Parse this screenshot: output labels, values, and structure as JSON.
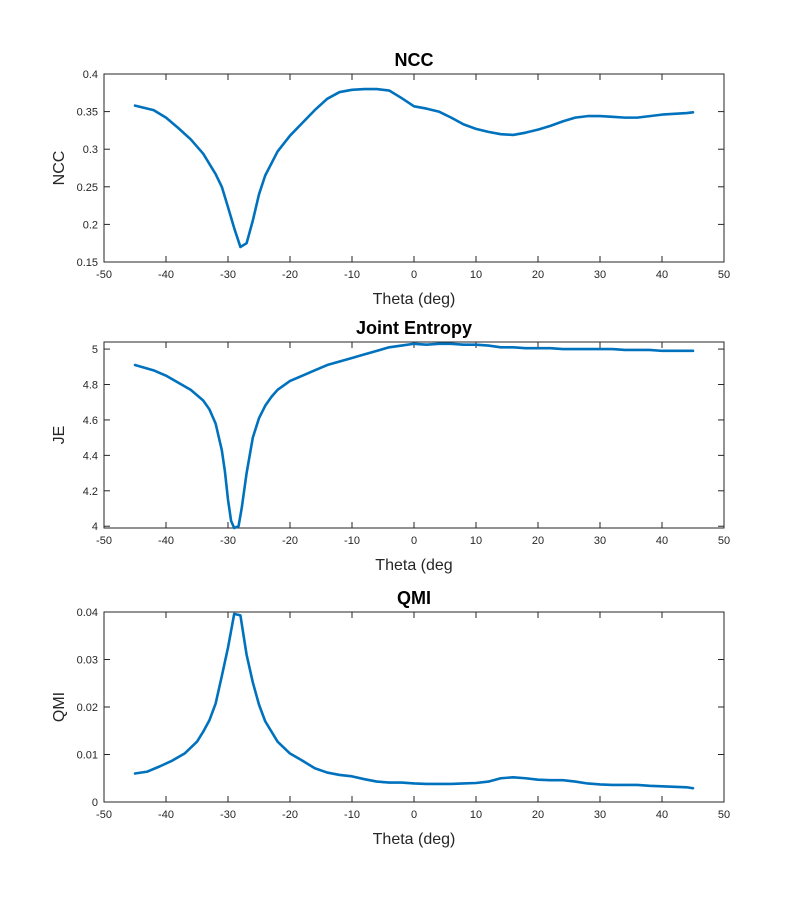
{
  "chart_data": [
    {
      "type": "line",
      "title": "NCC",
      "xlabel": "Theta (deg)",
      "ylabel": "NCC",
      "xlim": [
        -50,
        50
      ],
      "ylim": [
        0.15,
        0.4
      ],
      "xticks": [
        -50,
        -40,
        -30,
        -20,
        -10,
        0,
        10,
        20,
        30,
        40,
        50
      ],
      "yticks": [
        0.15,
        0.2,
        0.25,
        0.3,
        0.35,
        0.4
      ],
      "ytick_labels": [
        "0.15",
        "0.2",
        "0.25",
        "0.3",
        "0.35",
        "0.4"
      ],
      "grid": false,
      "color": "#0072BD",
      "series": [
        {
          "x": [
            -45,
            -42,
            -40,
            -38,
            -36,
            -34,
            -32,
            -31,
            -30,
            -29,
            -28,
            -27,
            -26,
            -25,
            -24,
            -22,
            -20,
            -18,
            -16,
            -14,
            -12,
            -10,
            -8,
            -6,
            -4,
            -2,
            0,
            2,
            4,
            6,
            8,
            10,
            12,
            14,
            16,
            18,
            20,
            22,
            24,
            26,
            28,
            30,
            32,
            34,
            36,
            38,
            40,
            42,
            44,
            45
          ],
          "y": [
            0.358,
            0.352,
            0.342,
            0.328,
            0.313,
            0.294,
            0.267,
            0.25,
            0.223,
            0.195,
            0.17,
            0.175,
            0.205,
            0.24,
            0.265,
            0.297,
            0.318,
            0.335,
            0.352,
            0.367,
            0.376,
            0.379,
            0.38,
            0.38,
            0.378,
            0.368,
            0.357,
            0.354,
            0.35,
            0.342,
            0.333,
            0.327,
            0.323,
            0.32,
            0.319,
            0.322,
            0.326,
            0.331,
            0.337,
            0.342,
            0.344,
            0.344,
            0.343,
            0.342,
            0.342,
            0.344,
            0.346,
            0.347,
            0.348,
            0.349
          ]
        }
      ]
    },
    {
      "type": "line",
      "title": "Joint Entropy",
      "xlabel": "Theta (deg",
      "ylabel": "JE",
      "xlim": [
        -50,
        50
      ],
      "ylim": [
        3.99,
        5.04
      ],
      "xticks": [
        -50,
        -40,
        -30,
        -20,
        -10,
        0,
        10,
        20,
        30,
        40,
        50
      ],
      "yticks": [
        4.0,
        4.2,
        4.4,
        4.6,
        4.8,
        5.0
      ],
      "ytick_labels": [
        "4",
        "4.2",
        "4.4",
        "4.6",
        "4.8",
        "5"
      ],
      "grid": false,
      "color": "#0072BD",
      "series": [
        {
          "x": [
            -45,
            -42,
            -40,
            -38,
            -36,
            -34,
            -33,
            -32,
            -31,
            -30.5,
            -30,
            -29.5,
            -29,
            -28.3,
            -27.8,
            -27,
            -26,
            -25,
            -24,
            -23,
            -22,
            -20,
            -18,
            -16,
            -14,
            -12,
            -10,
            -8,
            -6,
            -4,
            -2,
            0,
            2,
            4,
            6,
            8,
            10,
            12,
            14,
            16,
            18,
            20,
            22,
            24,
            26,
            28,
            30,
            32,
            34,
            36,
            38,
            40,
            42,
            44,
            45
          ],
          "y": [
            4.91,
            4.88,
            4.85,
            4.81,
            4.77,
            4.71,
            4.66,
            4.58,
            4.43,
            4.31,
            4.15,
            4.03,
            3.99,
            4.0,
            4.1,
            4.3,
            4.5,
            4.61,
            4.68,
            4.73,
            4.77,
            4.82,
            4.85,
            4.88,
            4.91,
            4.93,
            4.95,
            4.97,
            4.99,
            5.01,
            5.02,
            5.03,
            5.025,
            5.03,
            5.03,
            5.025,
            5.025,
            5.02,
            5.01,
            5.01,
            5.005,
            5.005,
            5.005,
            5.0,
            5.0,
            5.0,
            5.0,
            5.0,
            4.995,
            4.995,
            4.995,
            4.99,
            4.99,
            4.99,
            4.99
          ]
        }
      ]
    },
    {
      "type": "line",
      "title": "QMI",
      "xlabel": "Theta (deg)",
      "ylabel": "QMI",
      "xlim": [
        -50,
        50
      ],
      "ylim": [
        0,
        0.04
      ],
      "xticks": [
        -50,
        -40,
        -30,
        -20,
        -10,
        0,
        10,
        20,
        30,
        40,
        50
      ],
      "yticks": [
        0,
        0.01,
        0.02,
        0.03,
        0.04
      ],
      "ytick_labels": [
        "0",
        "0.01",
        "0.02",
        "0.03",
        "0.04"
      ],
      "grid": false,
      "color": "#0072BD",
      "series": [
        {
          "x": [
            -45,
            -43,
            -41,
            -39,
            -37,
            -35,
            -34,
            -33,
            -32,
            -31,
            -30,
            -29,
            -28,
            -27,
            -26,
            -25,
            -24,
            -22,
            -20,
            -18,
            -16,
            -14,
            -12,
            -10,
            -8,
            -6,
            -4,
            -2,
            0,
            2,
            4,
            6,
            8,
            10,
            12,
            14,
            16,
            18,
            20,
            22,
            24,
            26,
            28,
            30,
            32,
            34,
            36,
            38,
            40,
            42,
            44,
            45
          ],
          "y": [
            0.006,
            0.0064,
            0.0075,
            0.0087,
            0.0102,
            0.0127,
            0.0148,
            0.0172,
            0.0207,
            0.0265,
            0.0325,
            0.0396,
            0.0393,
            0.031,
            0.0252,
            0.0205,
            0.017,
            0.0127,
            0.0102,
            0.0087,
            0.0071,
            0.0062,
            0.0057,
            0.0054,
            0.0048,
            0.0043,
            0.0041,
            0.0041,
            0.0039,
            0.0038,
            0.0038,
            0.0038,
            0.0039,
            0.004,
            0.0043,
            0.005,
            0.0052,
            0.005,
            0.0047,
            0.0046,
            0.0046,
            0.0043,
            0.0039,
            0.0037,
            0.0036,
            0.0036,
            0.0036,
            0.0034,
            0.0033,
            0.0032,
            0.0031,
            0.0029
          ]
        }
      ]
    }
  ]
}
